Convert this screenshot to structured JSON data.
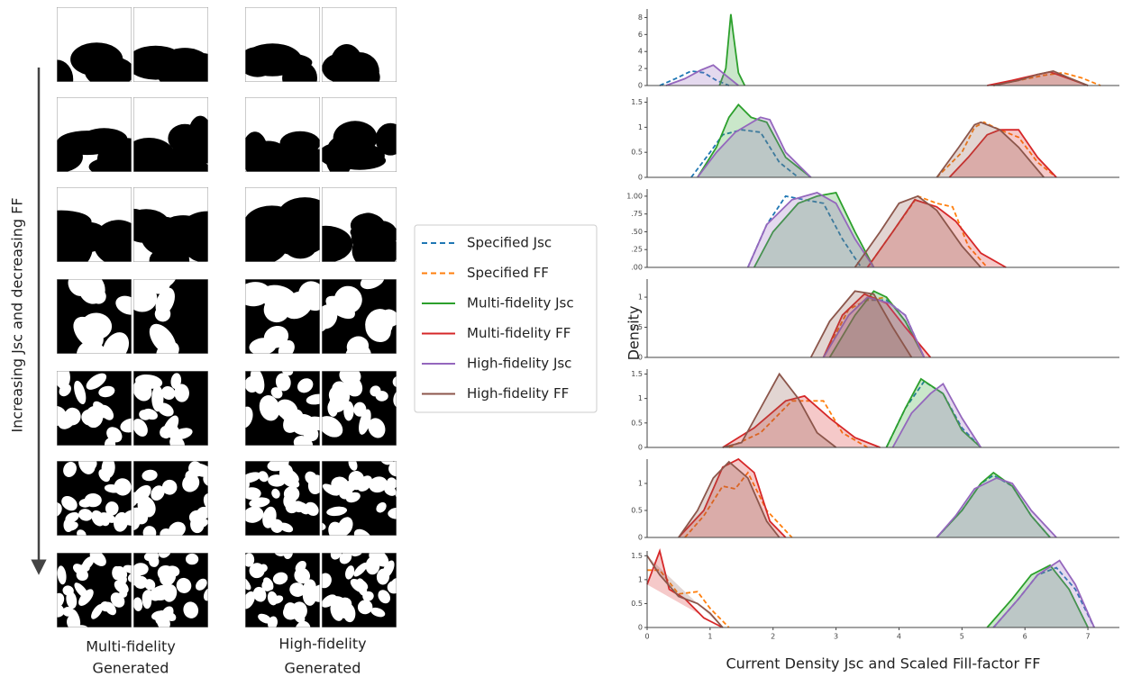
{
  "figure": {
    "arrow_label": "Increasing Jsc and decreasing FF",
    "column_labels": [
      [
        "Multi-fidelity",
        "Generated"
      ],
      [
        "High-fidelity",
        "Generated"
      ]
    ]
  },
  "chart_data": {
    "type": "density",
    "y_label": "Density",
    "x_label": "Current Density Jsc and Scaled Fill-factor FF",
    "xlim": [
      0,
      7.5
    ],
    "xticks": [
      0,
      1,
      2,
      3,
      4,
      5,
      6,
      7
    ],
    "legend": [
      {
        "name": "Specified Jsc",
        "color": "#1f77b4",
        "dashed": true,
        "filled": false
      },
      {
        "name": "Specified FF",
        "color": "#ff7f0e",
        "dashed": true,
        "filled": false
      },
      {
        "name": "Multi-fidelity Jsc",
        "color": "#2ca02c",
        "dashed": false,
        "filled": true
      },
      {
        "name": "Multi-fidelity FF",
        "color": "#d62728",
        "dashed": false,
        "filled": true
      },
      {
        "name": "High-fidelity Jsc",
        "color": "#9467bd",
        "dashed": false,
        "filled": true
      },
      {
        "name": "High-fidelity FF",
        "color": "#8c564b",
        "dashed": false,
        "filled": true
      }
    ],
    "panels": [
      {
        "ylim": [
          0,
          9
        ],
        "yticks": [
          0,
          2,
          4,
          6,
          8
        ],
        "series": [
          {
            "x": [
              0.2,
              0.45,
              0.7,
              0.9,
              1.1,
              1.3
            ],
            "values": [
              0,
              0.8,
              1.7,
              1.5,
              0.6,
              0
            ]
          },
          {
            "x": [
              5.5,
              5.9,
              6.3,
              6.6,
              6.9,
              7.2
            ],
            "values": [
              0,
              0.6,
              1.2,
              1.5,
              0.9,
              0
            ]
          },
          {
            "x": [
              1.15,
              1.25,
              1.3,
              1.33,
              1.37,
              1.45,
              1.55
            ],
            "values": [
              0,
              2,
              6,
              8.4,
              6,
              1.5,
              0
            ]
          },
          {
            "x": [
              5.4,
              5.8,
              6.2,
              6.4,
              6.7,
              7.0
            ],
            "values": [
              0,
              0.6,
              1.3,
              1.6,
              0.8,
              0
            ]
          },
          {
            "x": [
              0.3,
              0.6,
              0.85,
              1.05,
              1.25,
              1.45
            ],
            "values": [
              0,
              0.8,
              1.8,
              2.4,
              1.2,
              0
            ]
          },
          {
            "x": [
              5.5,
              5.9,
              6.2,
              6.45,
              6.7,
              7.0
            ],
            "values": [
              0,
              0.6,
              1.3,
              1.7,
              0.9,
              0
            ]
          }
        ]
      },
      {
        "ylim": [
          0,
          1.6
        ],
        "yticks": [
          0,
          0.5,
          1,
          1.5
        ],
        "series": [
          {
            "x": [
              0.7,
              1.0,
              1.2,
              1.5,
              1.8,
              2.1,
              2.4
            ],
            "values": [
              0,
              0.5,
              0.85,
              0.95,
              0.9,
              0.3,
              0
            ]
          },
          {
            "x": [
              4.6,
              5.0,
              5.2,
              5.35,
              5.6,
              5.9,
              6.2,
              6.5
            ],
            "values": [
              0,
              0.5,
              1.0,
              1.1,
              0.95,
              0.8,
              0.3,
              0
            ]
          },
          {
            "x": [
              0.8,
              1.1,
              1.3,
              1.45,
              1.65,
              1.9,
              2.2,
              2.6
            ],
            "values": [
              0,
              0.6,
              1.2,
              1.45,
              1.2,
              1.1,
              0.4,
              0
            ]
          },
          {
            "x": [
              4.8,
              5.1,
              5.4,
              5.6,
              5.9,
              6.2,
              6.5
            ],
            "values": [
              0,
              0.4,
              0.85,
              0.95,
              0.95,
              0.4,
              0
            ]
          },
          {
            "x": [
              0.8,
              1.1,
              1.4,
              1.6,
              1.8,
              1.95,
              2.2,
              2.6
            ],
            "values": [
              0,
              0.5,
              0.9,
              1.05,
              1.2,
              1.15,
              0.5,
              0
            ]
          },
          {
            "x": [
              4.6,
              4.95,
              5.2,
              5.3,
              5.6,
              5.9,
              6.3
            ],
            "values": [
              0,
              0.6,
              1.05,
              1.1,
              0.95,
              0.6,
              0
            ]
          }
        ]
      },
      {
        "ylim": [
          0,
          1.1
        ],
        "yticks": [
          {
            "value": 0,
            "label": ".00"
          },
          {
            "value": 0.25,
            "label": ".25"
          },
          {
            "value": 0.5,
            "label": ".50"
          },
          {
            "value": 0.75,
            "label": ".75"
          },
          {
            "value": 1,
            "label": "1.00"
          }
        ],
        "series": [
          {
            "x": [
              1.6,
              1.9,
              2.2,
              2.5,
              2.8,
              3.1,
              3.4
            ],
            "values": [
              0,
              0.6,
              1.0,
              0.95,
              0.9,
              0.4,
              0
            ]
          },
          {
            "x": [
              3.5,
              3.9,
              4.3,
              4.6,
              4.85,
              5.1,
              5.4
            ],
            "values": [
              0,
              0.5,
              1.0,
              0.9,
              0.85,
              0.3,
              0
            ]
          },
          {
            "x": [
              1.7,
              2.0,
              2.4,
              2.7,
              3.0,
              3.3,
              3.6
            ],
            "values": [
              0,
              0.5,
              0.9,
              1.0,
              1.05,
              0.5,
              0
            ]
          },
          {
            "x": [
              3.5,
              3.9,
              4.25,
              4.6,
              4.9,
              5.3,
              5.7
            ],
            "values": [
              0,
              0.5,
              0.95,
              0.85,
              0.65,
              0.2,
              0
            ]
          },
          {
            "x": [
              1.6,
              1.9,
              2.3,
              2.7,
              3.0,
              3.3,
              3.6
            ],
            "values": [
              0,
              0.6,
              0.95,
              1.05,
              0.9,
              0.4,
              0
            ]
          },
          {
            "x": [
              3.3,
              3.7,
              4.0,
              4.3,
              4.6,
              5.0,
              5.3
            ],
            "values": [
              0,
              0.5,
              0.9,
              1.0,
              0.8,
              0.3,
              0
            ]
          }
        ]
      },
      {
        "ylim": [
          0,
          1.3
        ],
        "yticks": [
          0,
          0.5,
          1
        ],
        "series": [
          {
            "x": [
              2.8,
              3.2,
              3.5,
              3.8,
              4.1,
              4.4
            ],
            "values": [
              0,
              0.8,
              0.95,
              0.95,
              0.7,
              0
            ]
          },
          {
            "x": [
              2.8,
              3.2,
              3.5,
              3.8,
              4.1,
              4.4
            ],
            "values": [
              0,
              0.8,
              0.95,
              1.0,
              0.6,
              0
            ]
          },
          {
            "x": [
              2.9,
              3.3,
              3.6,
              3.8,
              4.1,
              4.4
            ],
            "values": [
              0,
              0.7,
              1.1,
              1.0,
              0.6,
              0
            ]
          },
          {
            "x": [
              2.8,
              3.1,
              3.45,
              3.8,
              4.1,
              4.5
            ],
            "values": [
              0,
              0.7,
              1.05,
              0.9,
              0.5,
              0
            ]
          },
          {
            "x": [
              2.8,
              3.2,
              3.5,
              3.85,
              4.1,
              4.4
            ],
            "values": [
              0,
              0.7,
              1.0,
              0.9,
              0.7,
              0
            ]
          },
          {
            "x": [
              2.6,
              2.9,
              3.3,
              3.6,
              3.9,
              4.2
            ],
            "values": [
              0,
              0.6,
              1.1,
              1.05,
              0.5,
              0
            ]
          }
        ]
      },
      {
        "ylim": [
          0,
          1.6
        ],
        "yticks": [
          0,
          0.5,
          1,
          1.5
        ],
        "series": [
          {
            "x": [
              3.8,
              4.1,
              4.4,
              4.7,
              5.0,
              5.3
            ],
            "values": [
              0,
              0.8,
              1.35,
              1.1,
              0.4,
              0
            ]
          },
          {
            "x": [
              1.3,
              1.8,
              2.3,
              2.8,
              3.1,
              3.5
            ],
            "values": [
              0,
              0.3,
              0.95,
              0.95,
              0.3,
              0
            ]
          },
          {
            "x": [
              3.8,
              4.1,
              4.35,
              4.7,
              5.0,
              5.3
            ],
            "values": [
              0,
              0.8,
              1.4,
              1.1,
              0.35,
              0
            ]
          },
          {
            "x": [
              1.2,
              1.7,
              2.2,
              2.5,
              2.9,
              3.3,
              3.7
            ],
            "values": [
              0,
              0.4,
              0.95,
              1.05,
              0.6,
              0.2,
              0
            ]
          },
          {
            "x": [
              3.9,
              4.2,
              4.5,
              4.7,
              5.0,
              5.3
            ],
            "values": [
              0,
              0.7,
              1.1,
              1.3,
              0.6,
              0
            ]
          },
          {
            "x": [
              1.2,
              1.5,
              1.8,
              2.1,
              2.4,
              2.7,
              3.0
            ],
            "values": [
              0,
              0.1,
              0.8,
              1.5,
              1.0,
              0.3,
              0
            ]
          }
        ]
      },
      {
        "ylim": [
          0,
          1.45
        ],
        "yticks": [
          0,
          0.5,
          1
        ],
        "series": [
          {
            "x": [
              4.6,
              5.0,
              5.3,
              5.5,
              5.8,
              6.1,
              6.4
            ],
            "values": [
              0,
              0.5,
              1.0,
              1.15,
              0.95,
              0.4,
              0
            ]
          },
          {
            "x": [
              0.6,
              0.9,
              1.2,
              1.4,
              1.6,
              1.9,
              2.3
            ],
            "values": [
              0,
              0.4,
              0.95,
              0.9,
              1.2,
              0.5,
              0
            ]
          },
          {
            "x": [
              4.6,
              5.0,
              5.3,
              5.5,
              5.8,
              6.1,
              6.4
            ],
            "values": [
              0,
              0.5,
              1.0,
              1.2,
              0.95,
              0.4,
              0
            ]
          },
          {
            "x": [
              0.5,
              0.9,
              1.2,
              1.45,
              1.7,
              1.95,
              2.2
            ],
            "values": [
              0,
              0.5,
              1.3,
              1.45,
              1.2,
              0.3,
              0
            ]
          },
          {
            "x": [
              4.6,
              4.9,
              5.2,
              5.55,
              5.8,
              6.1,
              6.5
            ],
            "values": [
              0,
              0.4,
              0.9,
              1.1,
              1.0,
              0.5,
              0
            ]
          },
          {
            "x": [
              0.5,
              0.8,
              1.05,
              1.3,
              1.6,
              1.9,
              2.1
            ],
            "values": [
              0,
              0.5,
              1.1,
              1.4,
              1.1,
              0.3,
              0
            ]
          }
        ]
      },
      {
        "ylim": [
          0,
          1.6
        ],
        "yticks": [
          0,
          0.5,
          1,
          1.5
        ],
        "series": [
          {
            "x": [
              5.5,
              5.9,
              6.2,
              6.5,
              6.8,
              7.1
            ],
            "values": [
              0,
              0.6,
              1.1,
              1.25,
              0.8,
              0
            ]
          },
          {
            "x": [
              0,
              0.2,
              0.5,
              0.8,
              1.0,
              1.3
            ],
            "values": [
              1.2,
              1.2,
              0.7,
              0.75,
              0.4,
              0
            ]
          },
          {
            "x": [
              5.4,
              5.8,
              6.1,
              6.4,
              6.7,
              7.0
            ],
            "values": [
              0,
              0.6,
              1.1,
              1.3,
              0.8,
              0
            ]
          },
          {
            "x": [
              0,
              0.2,
              0.35,
              0.6,
              0.9,
              1.2
            ],
            "values": [
              0.9,
              1.6,
              0.8,
              0.6,
              0.2,
              0
            ]
          },
          {
            "x": [
              5.5,
              5.9,
              6.2,
              6.55,
              6.8,
              7.1
            ],
            "values": [
              0,
              0.6,
              1.1,
              1.4,
              0.9,
              0
            ]
          },
          {
            "x": [
              0,
              0.2,
              0.5,
              0.8,
              1.0,
              1.2
            ],
            "values": [
              1.5,
              1.1,
              0.65,
              0.5,
              0.3,
              0
            ]
          }
        ]
      }
    ]
  }
}
